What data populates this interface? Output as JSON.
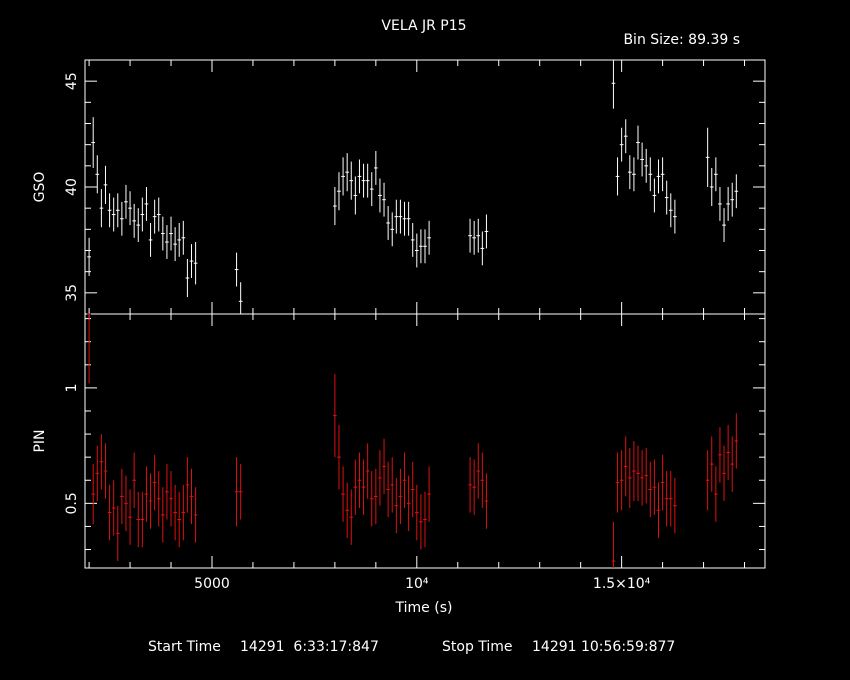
{
  "chart_data": [
    {
      "type": "scatter",
      "panel": "top",
      "title": "VELA JR P15",
      "annotation": "Bin Size: 89.39 s",
      "ylabel": "GSO",
      "ylim": [
        34,
        46
      ],
      "xlim": [
        1900,
        18500
      ],
      "yticks_major": [
        35,
        40,
        45
      ],
      "yticks_labels": [
        "35",
        "40",
        "45"
      ],
      "color": "#ffffff",
      "series": [
        {
          "x": [
            2000,
            2100,
            2200,
            2300,
            2400,
            2500,
            2600,
            2700,
            2800,
            2900,
            3000,
            3100,
            3200,
            3300,
            3400,
            3500,
            3600,
            3700,
            3800,
            3900,
            4000,
            4100,
            4200,
            4300,
            4400,
            4500,
            4600,
            5600,
            5700,
            8000,
            8100,
            8200,
            8300,
            8400,
            8500,
            8600,
            8700,
            8800,
            8900,
            9000,
            9100,
            9200,
            9300,
            9400,
            9500,
            9600,
            9700,
            9800,
            9900,
            10000,
            10100,
            10200,
            10300,
            11300,
            11400,
            11500,
            11600,
            11700,
            14800,
            14900,
            15000,
            15100,
            15200,
            15300,
            15400,
            15500,
            15600,
            15700,
            15800,
            15900,
            16000,
            16100,
            16200,
            16300,
            17100,
            17200,
            17300,
            17400,
            17500,
            17600,
            17700,
            17800
          ],
          "y": [
            36.7,
            42.1,
            40.6,
            39.0,
            40.1,
            38.9,
            38.7,
            38.9,
            38.5,
            39.3,
            39.0,
            38.4,
            38.2,
            38.7,
            39.2,
            37.5,
            38.6,
            38.7,
            37.8,
            37.4,
            37.8,
            37.3,
            37.5,
            37.6,
            35.7,
            36.5,
            36.4,
            36.1,
            34.6,
            39.1,
            39.8,
            40.5,
            40.7,
            40.3,
            39.6,
            40.5,
            40.3,
            40.3,
            39.9,
            40.9,
            39.6,
            39.4,
            38.3,
            38.0,
            38.6,
            38.6,
            38.5,
            38.5,
            37.5,
            37.0,
            37.2,
            37.2,
            37.6,
            37.7,
            37.6,
            37.7,
            37.1,
            37.9,
            44.9,
            40.5,
            42.0,
            42.4,
            40.7,
            40.6,
            42.1,
            41.3,
            41.0,
            40.6,
            39.6,
            40.5,
            40.6,
            39.5,
            38.9,
            38.6,
            41.4,
            40.0,
            40.6,
            39.2,
            38.2,
            39.2,
            39.4,
            39.8
          ],
          "err": [
            0.9,
            1.2,
            0.9,
            0.9,
            0.9,
            0.8,
            0.8,
            0.8,
            0.8,
            0.8,
            0.8,
            0.8,
            0.8,
            0.8,
            0.8,
            0.8,
            0.8,
            0.8,
            0.8,
            0.8,
            0.8,
            0.8,
            0.8,
            0.8,
            0.9,
            0.8,
            1.0,
            0.8,
            0.9,
            0.9,
            0.9,
            0.9,
            0.9,
            0.9,
            0.9,
            0.8,
            0.8,
            0.8,
            0.8,
            0.8,
            0.8,
            0.8,
            0.8,
            0.8,
            0.8,
            0.8,
            0.8,
            0.8,
            0.8,
            0.8,
            0.8,
            0.8,
            0.8,
            0.8,
            0.8,
            0.8,
            0.8,
            0.8,
            1.2,
            0.9,
            0.8,
            0.8,
            0.8,
            0.8,
            0.8,
            0.8,
            0.8,
            0.8,
            0.8,
            0.8,
            0.8,
            0.8,
            0.8,
            0.8,
            1.4,
            0.9,
            0.8,
            0.8,
            0.8,
            0.8,
            0.8,
            0.8
          ]
        }
      ]
    },
    {
      "type": "scatter",
      "panel": "bottom",
      "ylabel": "PIN",
      "xlabel": "Time (s)",
      "ylim": [
        0.22,
        1.32
      ],
      "xlim": [
        1900,
        18500
      ],
      "yticks_major": [
        0.5,
        1
      ],
      "yticks_labels": [
        "0.5",
        "1"
      ],
      "xticks_major": [
        5000,
        10000,
        15000
      ],
      "xticks_labels": [
        "5000",
        "10⁴",
        "1.5×10⁴"
      ],
      "color": "#dd1111",
      "series": [
        {
          "x": [
            2000,
            2100,
            2200,
            2300,
            2400,
            2500,
            2600,
            2700,
            2800,
            2900,
            3000,
            3100,
            3200,
            3300,
            3400,
            3500,
            3600,
            3700,
            3800,
            3900,
            4000,
            4100,
            4200,
            4300,
            4400,
            4500,
            4600,
            5600,
            5700,
            8000,
            8100,
            8200,
            8300,
            8400,
            8500,
            8600,
            8700,
            8800,
            8900,
            9000,
            9100,
            9200,
            9300,
            9400,
            9500,
            9600,
            9700,
            9800,
            9900,
            10000,
            10100,
            10200,
            10300,
            11300,
            11400,
            11500,
            11600,
            11700,
            14800,
            14900,
            15000,
            15100,
            15200,
            15300,
            15400,
            15500,
            15600,
            15700,
            15800,
            15900,
            16000,
            16100,
            16200,
            16300,
            17100,
            17200,
            17300,
            17400,
            17500,
            17600,
            17700,
            17800
          ],
          "y": [
            1.32,
            0.54,
            0.63,
            0.68,
            0.64,
            0.46,
            0.48,
            0.37,
            0.53,
            0.5,
            0.44,
            0.6,
            0.43,
            0.43,
            0.54,
            0.51,
            0.59,
            0.52,
            0.45,
            0.55,
            0.52,
            0.46,
            0.43,
            0.46,
            0.58,
            0.53,
            0.45,
            0.55,
            0.55,
            0.88,
            0.7,
            0.54,
            0.47,
            0.44,
            0.57,
            0.6,
            0.57,
            0.64,
            0.52,
            0.53,
            0.61,
            0.66,
            0.56,
            0.58,
            0.49,
            0.53,
            0.6,
            0.5,
            0.56,
            0.46,
            0.42,
            0.43,
            0.54,
            0.58,
            0.57,
            0.64,
            0.6,
            0.51,
            0.25,
            0.59,
            0.6,
            0.66,
            0.61,
            0.64,
            0.63,
            0.61,
            0.62,
            0.56,
            0.57,
            0.47,
            0.59,
            0.52,
            0.52,
            0.49,
            0.6,
            0.67,
            0.54,
            0.71,
            0.63,
            0.72,
            0.67,
            0.77
          ],
          "err": [
            0.3,
            0.13,
            0.12,
            0.12,
            0.12,
            0.12,
            0.12,
            0.12,
            0.12,
            0.12,
            0.12,
            0.12,
            0.12,
            0.12,
            0.12,
            0.12,
            0.12,
            0.12,
            0.12,
            0.12,
            0.12,
            0.12,
            0.12,
            0.12,
            0.12,
            0.12,
            0.12,
            0.15,
            0.12,
            0.18,
            0.14,
            0.12,
            0.12,
            0.12,
            0.12,
            0.12,
            0.12,
            0.12,
            0.12,
            0.12,
            0.12,
            0.12,
            0.12,
            0.12,
            0.12,
            0.12,
            0.12,
            0.12,
            0.12,
            0.12,
            0.12,
            0.12,
            0.12,
            0.12,
            0.12,
            0.12,
            0.12,
            0.12,
            0.17,
            0.13,
            0.13,
            0.13,
            0.13,
            0.13,
            0.12,
            0.12,
            0.12,
            0.12,
            0.12,
            0.12,
            0.12,
            0.12,
            0.12,
            0.12,
            0.13,
            0.12,
            0.12,
            0.12,
            0.12,
            0.12,
            0.12,
            0.12
          ]
        }
      ]
    }
  ],
  "footer": {
    "start_label": "Start Time",
    "start_value": "14291  6:33:17:847",
    "stop_label": "Stop Time",
    "stop_value": "14291 10:56:59:877"
  }
}
